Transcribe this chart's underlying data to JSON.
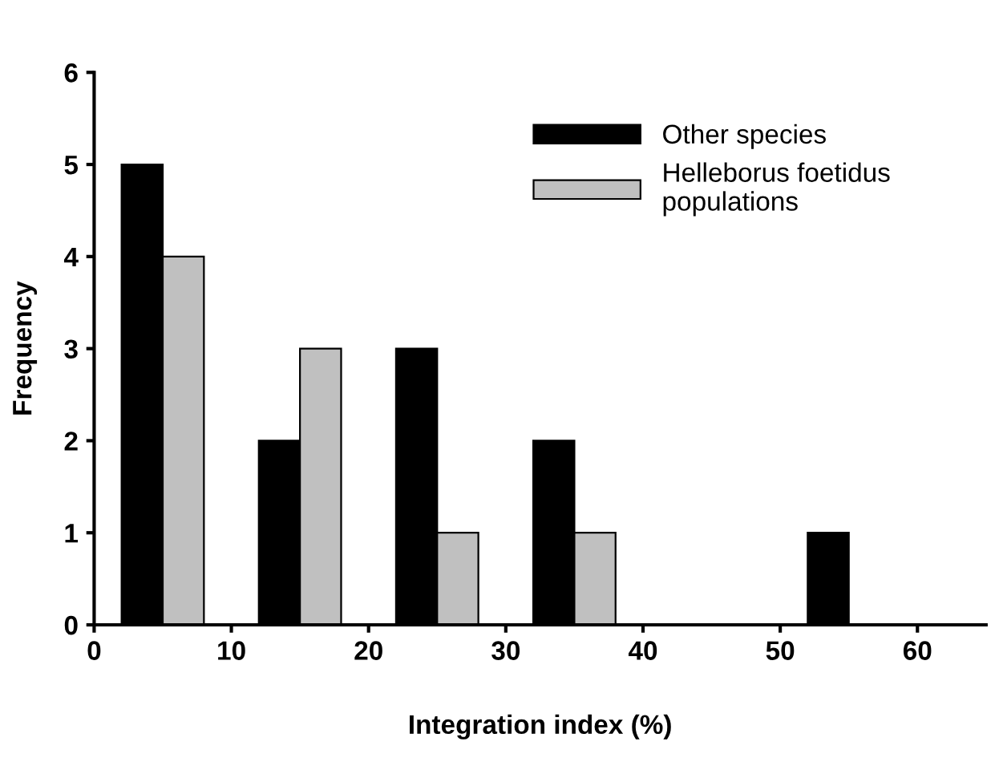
{
  "chart_data": {
    "type": "bar",
    "xlabel": "Integration index (%)",
    "ylabel": "Frequency",
    "series": [
      {
        "name": "Other species",
        "color": "#000000",
        "x": [
          3.5,
          13.5,
          23.5,
          33.5,
          53.5
        ],
        "values": [
          5,
          2,
          3,
          2,
          1
        ]
      },
      {
        "name": "Helleborus foetidus\npopulations",
        "color": "#c0c0c0",
        "x": [
          6.5,
          16.5,
          26.5,
          36.5
        ],
        "values": [
          4,
          3,
          1,
          1
        ]
      }
    ],
    "xlim": [
      0,
      65
    ],
    "xticks": [
      0,
      10,
      20,
      30,
      40,
      50,
      60
    ],
    "ylim": [
      0,
      6
    ],
    "yticks": [
      0,
      1,
      2,
      3,
      4,
      5,
      6
    ],
    "grid": false,
    "legend": "top right"
  }
}
